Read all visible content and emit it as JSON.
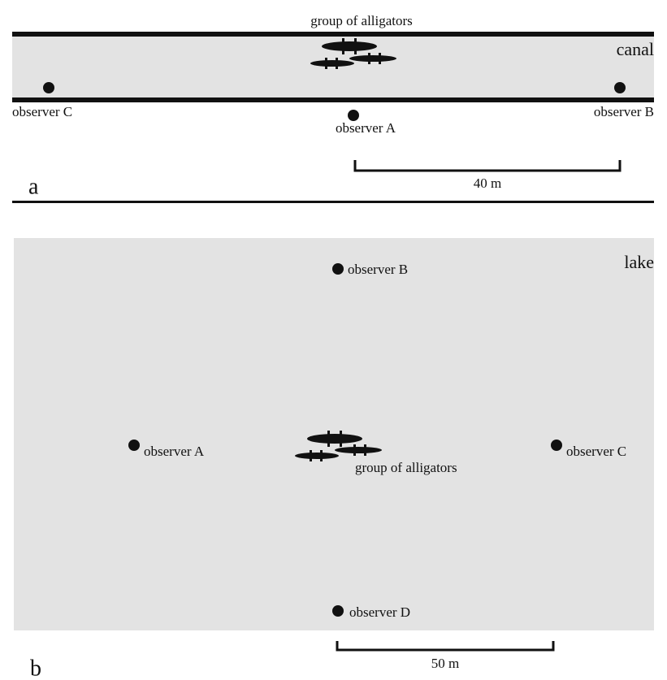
{
  "panel_a": {
    "label": "a",
    "water_label": "canal",
    "group_label": "group of alligators",
    "observers": [
      "observer A",
      "observer B",
      "observer C"
    ],
    "scale_label": "40 m"
  },
  "panel_b": {
    "label": "b",
    "water_label": "lake",
    "group_label": "group of alligators",
    "observers": [
      "observer A",
      "observer B",
      "observer C",
      "observer D"
    ],
    "scale_label": "50 m"
  }
}
